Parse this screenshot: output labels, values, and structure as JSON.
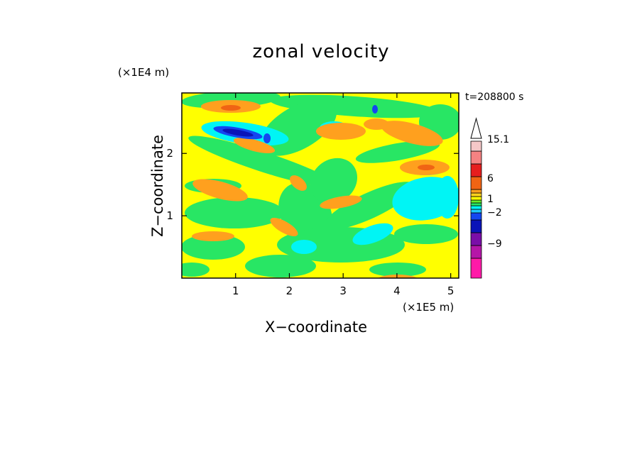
{
  "chart_data": {
    "type": "heatmap",
    "title": "zonal velocity",
    "xlabel": "X−coordinate",
    "ylabel": "Z−coordinate",
    "x_unit": "(×1E5 m)",
    "y_unit": "(×1E4 m)",
    "time_label": "t=208800 s",
    "xlim": [
      0,
      5.15
    ],
    "ylim": [
      0,
      2.97
    ],
    "x_ticks": [
      {
        "value": 1,
        "label": "1"
      },
      {
        "value": 2,
        "label": "2"
      },
      {
        "value": 3,
        "label": "3"
      },
      {
        "value": 4,
        "label": "4"
      },
      {
        "value": 5,
        "label": "5"
      }
    ],
    "y_ticks": [
      {
        "value": 1,
        "label": "1"
      },
      {
        "value": 2,
        "label": "2"
      }
    ],
    "colorbar": {
      "levels": [
        {
          "color": "#ff1aa8"
        },
        {
          "color": "#b516a8"
        },
        {
          "color": "#7a0ea8"
        },
        {
          "color": "#0a14b8"
        },
        {
          "color": "#1446f0"
        },
        {
          "color": "#1ec8ff"
        },
        {
          "color": "#00f5f5"
        },
        {
          "color": "#28e664"
        },
        {
          "color": "#66ee2a"
        },
        {
          "color": "#ffff00"
        },
        {
          "color": "#ffd21e"
        },
        {
          "color": "#ffa01e"
        },
        {
          "color": "#f06414"
        },
        {
          "color": "#e61e1e"
        },
        {
          "color": "#f58282"
        },
        {
          "color": "#f5c8c8"
        },
        {
          "color": "#ffffff"
        }
      ],
      "labels": [
        "15.1",
        "6",
        "1",
        "−2",
        "−9"
      ]
    },
    "palette": {
      "background": "#ffff00",
      "green": "#28e664",
      "cyan": "#00f5f5",
      "orange": "#ffa01e",
      "deep_orange": "#f06414",
      "blue": "#1446f0",
      "navy": "#0a14b8"
    },
    "grid": false
  }
}
